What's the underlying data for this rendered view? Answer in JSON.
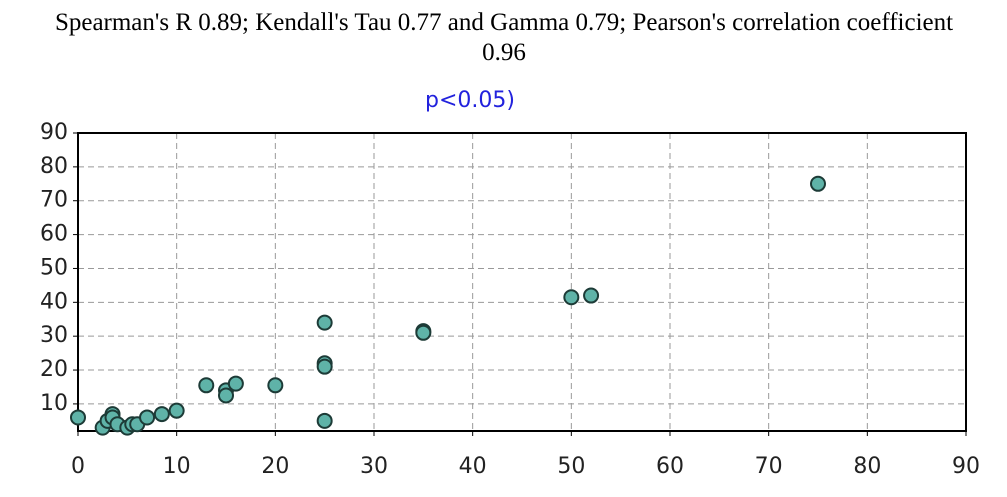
{
  "chart_data": {
    "type": "scatter",
    "title": "Spearman's R 0.89; Kendall's Tau 0.77 and Gamma 0.79; Pearson's correlation coefficient 0.96",
    "subtitle": "p<0.05)",
    "x": [
      0,
      2.5,
      3,
      3.5,
      3.5,
      4,
      5,
      5.5,
      6,
      7,
      8.5,
      10,
      13,
      15,
      15,
      16,
      20,
      25,
      25,
      25,
      25,
      35,
      35,
      50,
      52,
      75
    ],
    "values": [
      6,
      3,
      5,
      7,
      6,
      4,
      3,
      4,
      4,
      6,
      7,
      8,
      15.5,
      14,
      12.5,
      16,
      15.5,
      34,
      22,
      21,
      5,
      31.5,
      31,
      41.5,
      42,
      75
    ],
    "color": "#5fb3a8",
    "xlim": [
      0,
      90
    ],
    "xticks": [
      0,
      10,
      20,
      30,
      40,
      50,
      60,
      70,
      80,
      90
    ],
    "ylim": [
      2,
      90
    ],
    "yticks": [
      10,
      20,
      30,
      40,
      50,
      60,
      70,
      80,
      90
    ],
    "grid": true
  }
}
